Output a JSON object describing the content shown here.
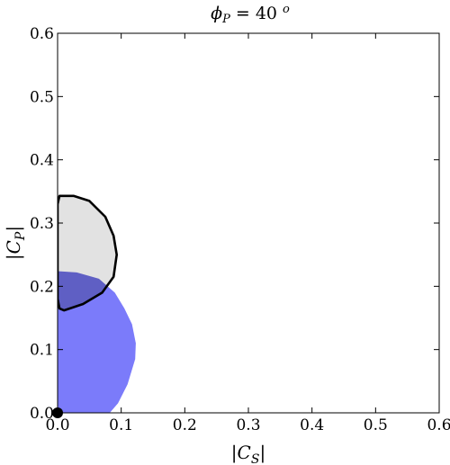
{
  "chart_data": {
    "type": "area",
    "title": "ϕP = 40 o",
    "title_parts": {
      "symbol": "ϕ",
      "symbol_sub": "P",
      "equals": " = 40 ",
      "superscript": "o"
    },
    "xlabel": "|CS|",
    "xlabel_parts": {
      "bar_left": "|",
      "symbol": "C",
      "sub": "S",
      "bar_right": "|"
    },
    "ylabel": "|CP|",
    "ylabel_parts": {
      "bar_left": "|",
      "symbol": "C",
      "sub": "P",
      "bar_right": "|"
    },
    "xlim": [
      0,
      0.6
    ],
    "ylim": [
      0,
      0.6
    ],
    "x_ticks": [
      {
        "value": 0.0,
        "label": "0.0"
      },
      {
        "value": 0.1,
        "label": "0.1"
      },
      {
        "value": 0.2,
        "label": "0.2"
      },
      {
        "value": 0.3,
        "label": "0.3"
      },
      {
        "value": 0.4,
        "label": "0.4"
      },
      {
        "value": 0.5,
        "label": "0.5"
      },
      {
        "value": 0.6,
        "label": "0.6"
      }
    ],
    "y_ticks": [
      {
        "value": 0.0,
        "label": "0.0"
      },
      {
        "value": 0.1,
        "label": "0.1"
      },
      {
        "value": 0.2,
        "label": "0.2"
      },
      {
        "value": 0.3,
        "label": "0.3"
      },
      {
        "value": 0.4,
        "label": "0.4"
      },
      {
        "value": 0.5,
        "label": "0.5"
      },
      {
        "value": 0.6,
        "label": "0.6"
      }
    ],
    "grid": false,
    "regions": [
      {
        "style": "filled",
        "fill": "#7b7bfa",
        "points": [
          [
            0.0,
            0.0
          ],
          [
            0.082,
            0.0
          ],
          [
            0.095,
            0.015
          ],
          [
            0.11,
            0.045
          ],
          [
            0.122,
            0.085
          ],
          [
            0.123,
            0.11
          ],
          [
            0.117,
            0.14
          ],
          [
            0.105,
            0.165
          ],
          [
            0.09,
            0.19
          ],
          [
            0.065,
            0.212
          ],
          [
            0.03,
            0.222
          ],
          [
            0.0,
            0.224
          ]
        ]
      },
      {
        "style": "filled-outlined",
        "fill": "#e2e2e2",
        "stroke": "#000000",
        "points": [
          [
            0.003,
            0.165
          ],
          [
            0.01,
            0.162
          ],
          [
            0.04,
            0.172
          ],
          [
            0.07,
            0.19
          ],
          [
            0.088,
            0.215
          ],
          [
            0.093,
            0.25
          ],
          [
            0.088,
            0.28
          ],
          [
            0.075,
            0.31
          ],
          [
            0.05,
            0.335
          ],
          [
            0.025,
            0.343
          ],
          [
            0.003,
            0.343
          ],
          [
            0.0,
            0.33
          ],
          [
            0.0,
            0.18
          ]
        ]
      }
    ],
    "points": [
      {
        "x": 0.0,
        "y": 0.0,
        "color": "#000000"
      }
    ],
    "colors": {
      "overlap_fill": "#5f5fc4",
      "outline": "#000000",
      "axis": "#000000"
    }
  }
}
